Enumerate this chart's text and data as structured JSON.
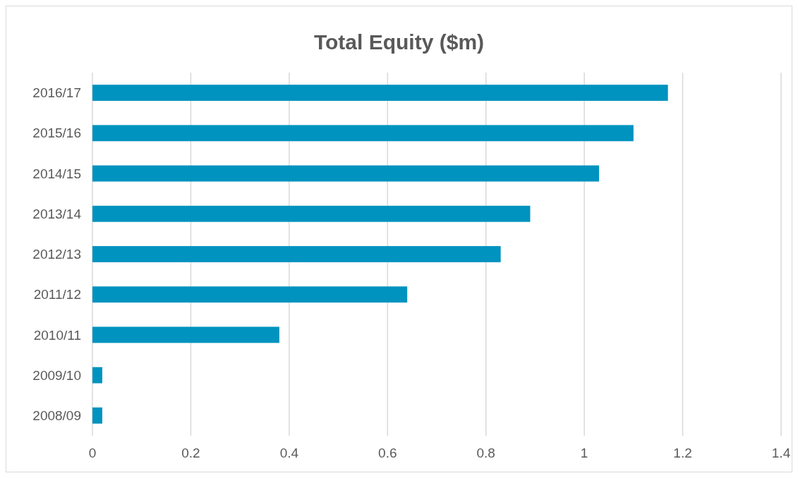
{
  "chart_data": {
    "type": "bar",
    "orientation": "horizontal",
    "title": "Total Equity ($m)",
    "categories": [
      "2016/17",
      "2015/16",
      "2014/15",
      "2013/14",
      "2012/13",
      "2011/12",
      "2010/11",
      "2009/10",
      "2008/09"
    ],
    "values": [
      1.17,
      1.1,
      1.03,
      0.89,
      0.83,
      0.64,
      0.38,
      0.02,
      0.02
    ],
    "color": "#0093bf",
    "xlim": [
      0,
      1.4
    ],
    "xticks": [
      0,
      0.2,
      0.4,
      0.6,
      0.8,
      1,
      1.2,
      1.4
    ],
    "grid": "x"
  }
}
